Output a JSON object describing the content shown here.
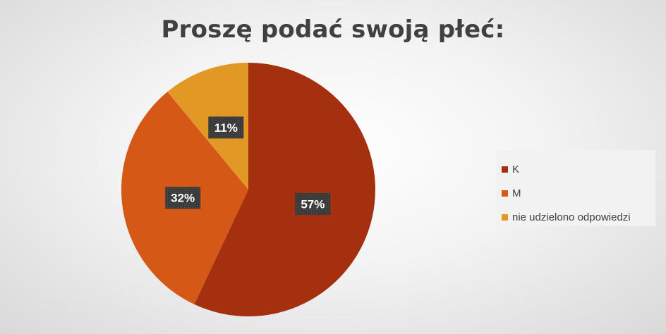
{
  "chart_data": {
    "type": "pie",
    "title": "Proszę podać swoją płeć:",
    "categories": [
      "K",
      "M",
      "nie udzielono odpowiedzi"
    ],
    "values": [
      57,
      32,
      11
    ],
    "data_labels": [
      "57%",
      "32%",
      "11%"
    ],
    "colors": [
      "#a5300f",
      "#d55816",
      "#e19825"
    ],
    "start_angle_deg": 0,
    "direction": "clockwise",
    "legend": "right"
  }
}
